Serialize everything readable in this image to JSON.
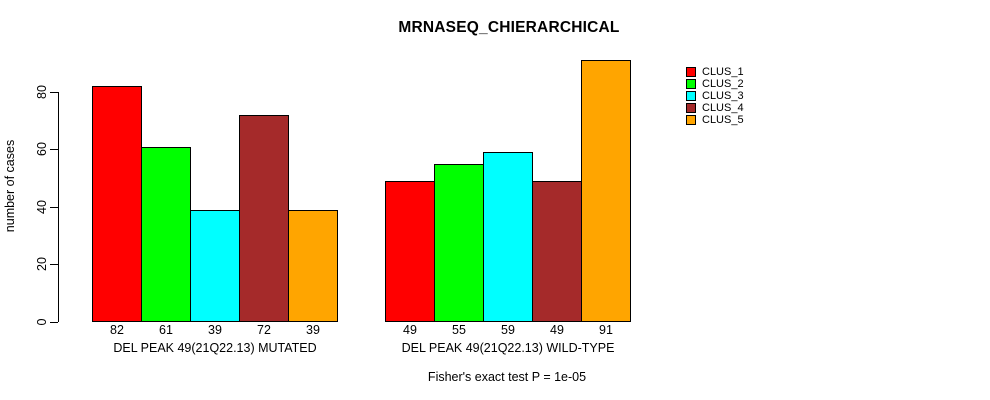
{
  "chart_data": {
    "type": "bar",
    "title": "MRNASEQ_CHIERARCHICAL",
    "ylabel": "number of cases",
    "xlabel": "",
    "annotation": "Fisher's exact test P = 1e-05",
    "ylim": [
      0,
      91
    ],
    "yticks": [
      0,
      20,
      40,
      60,
      80
    ],
    "grid": false,
    "legend_position": "top-right",
    "background_color": "#FFFFFF",
    "bar_border_color": "#000000",
    "categories": [
      "DEL PEAK 49(21Q22.13) MUTATED",
      "DEL PEAK 49(21Q22.13) WILD-TYPE"
    ],
    "series": [
      {
        "name": "CLUS_1",
        "color": "#FF0000",
        "values": [
          82,
          49
        ]
      },
      {
        "name": "CLUS_2",
        "color": "#00FF00",
        "values": [
          61,
          55
        ]
      },
      {
        "name": "CLUS_3",
        "color": "#00FFFF",
        "values": [
          39,
          59
        ]
      },
      {
        "name": "CLUS_4",
        "color": "#A52A2A",
        "values": [
          72,
          49
        ]
      },
      {
        "name": "CLUS_5",
        "color": "#FFA500",
        "values": [
          39,
          91
        ]
      }
    ],
    "bar_value_labels": {
      "DEL PEAK 49(21Q22.13) MUTATED": [
        82,
        61,
        39,
        72,
        39
      ],
      "DEL PEAK 49(21Q22.13) WILD-TYPE": [
        49,
        55,
        59,
        49,
        91
      ]
    }
  }
}
